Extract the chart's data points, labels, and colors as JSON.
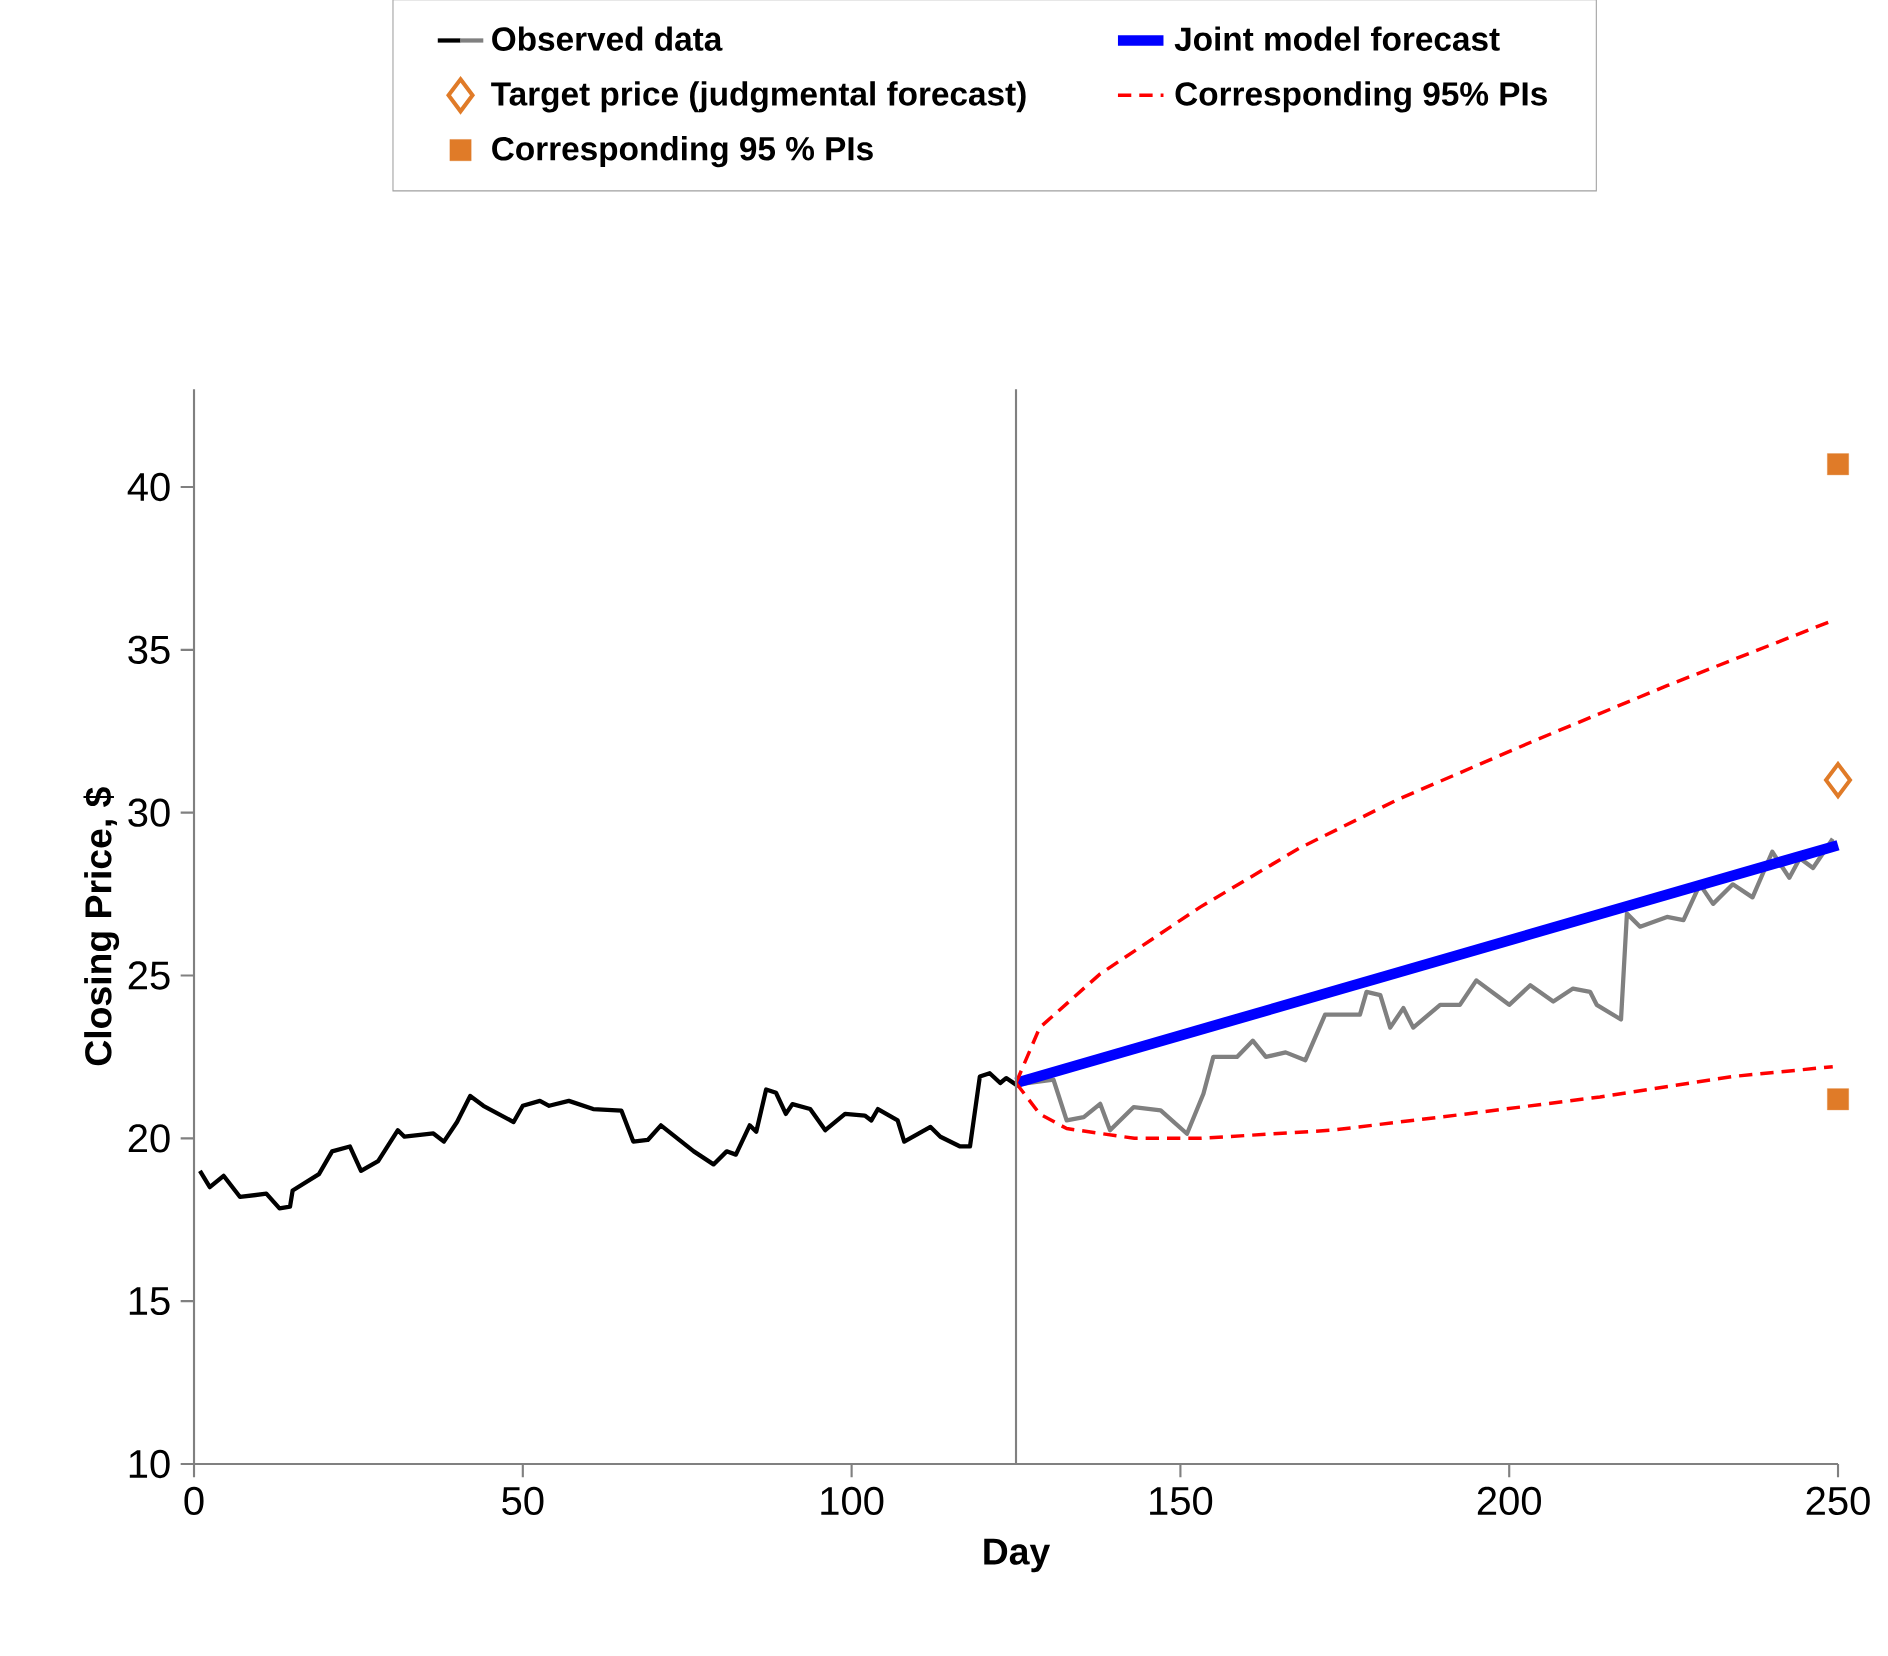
{
  "chart_data": {
    "type": "line",
    "xlabel": "Day",
    "ylabel": "Closing Price, $",
    "xlim": [
      0,
      250
    ],
    "xticks": [
      0,
      50,
      100,
      150,
      200,
      250
    ],
    "ylim": [
      10,
      43
    ],
    "yticks": [
      10,
      15,
      20,
      25,
      30,
      35,
      40
    ],
    "legend": "top",
    "ref_lines": [
      {
        "axis": "x",
        "value": 125,
        "color": "#808080"
      }
    ],
    "series": [
      {
        "name": "Observed data",
        "color": "#000000",
        "x": [
          0.9,
          2.4,
          4.5,
          7,
          11,
          13,
          14.6,
          15,
          19,
          21,
          23.7,
          25.4,
          28,
          31,
          32,
          36.4,
          38,
          40,
          42,
          44,
          48.6,
          50,
          52.6,
          54,
          57,
          60.7,
          65,
          66.8,
          69,
          71,
          76,
          79,
          81,
          82.4,
          84.5,
          85.5,
          87,
          88.5,
          90,
          91,
          93.7,
          96,
          99,
          102,
          103,
          104,
          107,
          108,
          112,
          113.5,
          116.5,
          118,
          119.5,
          121,
          122.6,
          123.5,
          125
        ],
        "values": [
          19.0,
          18.5,
          18.85,
          18.2,
          18.3,
          17.85,
          17.9,
          18.4,
          18.9,
          19.6,
          19.75,
          19.0,
          19.3,
          20.25,
          20.05,
          20.15,
          19.9,
          20.5,
          21.3,
          21.0,
          20.5,
          21.0,
          21.15,
          21.0,
          21.15,
          20.9,
          20.85,
          19.9,
          19.95,
          20.4,
          19.6,
          19.2,
          19.6,
          19.5,
          20.4,
          20.2,
          21.5,
          21.4,
          20.75,
          21.05,
          20.9,
          20.25,
          20.75,
          20.7,
          20.55,
          20.9,
          20.55,
          19.9,
          20.35,
          20.05,
          19.75,
          19.75,
          21.9,
          22.0,
          21.7,
          21.85,
          21.65
        ]
      },
      {
        "color": "#808080",
        "x": [
          125,
          130.7,
          132.7,
          135.3,
          137.8,
          139.3,
          142.9,
          147,
          151,
          153.5,
          155,
          158.6,
          161,
          163,
          166,
          169,
          172,
          177.3,
          178.3,
          180.4,
          181.9,
          183.9,
          185.4,
          189.5,
          192.5,
          195,
          198,
          200,
          203.2,
          206.7,
          209.7,
          212.3,
          213.3,
          217,
          217.9,
          219.9,
          224,
          226.5,
          229,
          231,
          234,
          237,
          240,
          242.6,
          244.2,
          246.2,
          249.2
        ],
        "values": [
          21.65,
          21.8,
          20.55,
          20.65,
          21.06,
          20.25,
          20.96,
          20.86,
          20.14,
          21.37,
          22.5,
          22.5,
          23.0,
          22.5,
          22.64,
          22.4,
          23.8,
          23.8,
          24.5,
          24.4,
          23.4,
          24.0,
          23.4,
          24.1,
          24.1,
          24.85,
          24.4,
          24.1,
          24.7,
          24.2,
          24.6,
          24.5,
          24.1,
          23.65,
          26.9,
          26.5,
          26.8,
          26.7,
          27.8,
          27.2,
          27.8,
          27.4,
          28.8,
          28.0,
          28.6,
          28.3,
          29.2
        ]
      },
      {
        "name": "Target price (judgmental forecast)",
        "type": "scatter",
        "marker": "diamond",
        "color": "#e07b28",
        "x": [
          250
        ],
        "values": [
          31.0
        ]
      },
      {
        "name": "Corresponding 95 % PIs",
        "type": "scatter",
        "marker": "square",
        "color": "#e07b28",
        "x": [
          250,
          250
        ],
        "values": [
          40.7,
          21.2
        ]
      },
      {
        "name": "Joint model forecast",
        "color": "#0000ff",
        "x": [
          125,
          250
        ],
        "values": [
          21.7,
          29.0
        ]
      },
      {
        "name": "Corresponding 95% PIs",
        "color": "#ff0000",
        "line_style": "dashed",
        "x": [
          125,
          128.6,
          137.8,
          153,
          168,
          183,
          203.7,
          224,
          249.2
        ],
        "values": [
          21.7,
          23.4,
          25.05,
          27.1,
          28.9,
          30.4,
          32.2,
          33.9,
          35.9
        ]
      },
      {
        "color": "#ff0000",
        "line_style": "dashed",
        "x": [
          125,
          128.6,
          132.7,
          143,
          153,
          173,
          193.5,
          213.8,
          234,
          249.2
        ],
        "values": [
          21.7,
          20.75,
          20.3,
          20.0,
          20.0,
          20.25,
          20.75,
          21.27,
          21.9,
          22.2
        ]
      }
    ]
  }
}
